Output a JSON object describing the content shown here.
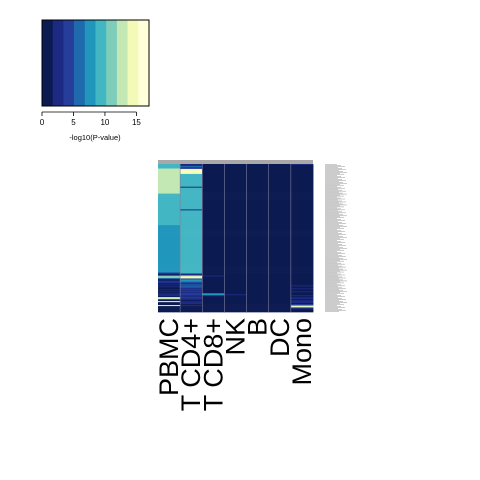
{
  "chart_data": {
    "type": "heatmap",
    "title": "",
    "columns": [
      "PBMC",
      "T CD4+",
      "T CD8+",
      "NK",
      "B",
      "DC",
      "Mono"
    ],
    "color_key": {
      "label": "-log10(P-value)",
      "range": [
        0,
        17
      ],
      "ticks": [
        0,
        5,
        10,
        15
      ],
      "palette": [
        "#0c1a52",
        "#1c2a83",
        "#243e99",
        "#1e6aad",
        "#2196bc",
        "#43b6c3",
        "#7ecdbb",
        "#c4e8b4",
        "#f3fab8",
        "#ffffd9"
      ]
    },
    "row_count": 150,
    "row_labels_legible": false,
    "rows": [
      [
        10,
        3,
        0,
        1,
        0,
        1,
        2
      ],
      [
        9,
        3,
        0,
        0,
        0,
        0,
        1
      ],
      [
        9,
        6,
        0,
        1,
        0,
        0,
        0
      ],
      [
        10,
        5,
        1,
        1,
        0,
        0,
        1
      ],
      [
        11,
        4,
        0,
        0,
        0,
        0,
        0
      ],
      [
        13,
        15,
        0,
        0,
        0,
        0,
        0
      ],
      [
        13,
        15,
        0,
        1,
        0,
        0,
        0
      ],
      [
        13,
        16,
        1,
        1,
        0,
        0,
        0
      ],
      [
        13,
        15,
        0,
        0,
        0,
        0,
        0
      ],
      [
        13,
        16,
        0,
        1,
        0,
        0,
        0
      ],
      [
        12,
        9,
        1,
        0,
        0,
        0,
        0
      ],
      [
        12,
        10,
        0,
        0,
        0,
        1,
        0
      ],
      [
        12,
        9,
        0,
        1,
        0,
        0,
        0
      ],
      [
        12,
        10,
        0,
        0,
        0,
        0,
        0
      ],
      [
        12,
        9,
        1,
        0,
        0,
        0,
        0
      ],
      [
        12,
        10,
        0,
        1,
        0,
        0,
        0
      ],
      [
        12,
        9,
        0,
        0,
        0,
        0,
        0
      ],
      [
        12,
        10,
        0,
        0,
        0,
        1,
        0
      ],
      [
        12,
        9,
        1,
        1,
        0,
        0,
        0
      ],
      [
        12,
        10,
        0,
        0,
        0,
        0,
        0
      ],
      [
        12,
        9,
        0,
        1,
        0,
        0,
        0
      ],
      [
        12,
        10,
        0,
        0,
        0,
        0,
        0
      ],
      [
        12,
        9,
        1,
        0,
        0,
        0,
        0
      ],
      [
        12,
        3,
        0,
        1,
        0,
        0,
        0
      ],
      [
        12,
        9,
        0,
        0,
        0,
        0,
        0
      ],
      [
        12,
        10,
        1,
        1,
        0,
        0,
        0
      ],
      [
        12,
        9,
        0,
        0,
        0,
        0,
        0
      ],
      [
        12,
        10,
        0,
        1,
        0,
        0,
        0
      ],
      [
        12,
        9,
        0,
        0,
        0,
        0,
        0
      ],
      [
        12,
        10,
        0,
        0,
        0,
        0,
        0
      ],
      [
        10,
        9,
        0,
        1,
        0,
        0,
        0
      ],
      [
        10,
        10,
        0,
        0,
        0,
        0,
        0
      ],
      [
        10,
        9,
        1,
        0,
        0,
        0,
        0
      ],
      [
        10,
        10,
        0,
        1,
        0,
        0,
        0
      ],
      [
        10,
        9,
        0,
        0,
        0,
        0,
        0
      ],
      [
        10,
        10,
        1,
        1,
        0,
        0,
        0
      ],
      [
        10,
        9,
        0,
        0,
        0,
        0,
        0
      ],
      [
        10,
        10,
        0,
        1,
        0,
        0,
        0
      ],
      [
        10,
        9,
        0,
        0,
        0,
        0,
        0
      ],
      [
        10,
        10,
        0,
        1,
        0,
        0,
        0
      ],
      [
        10,
        9,
        0,
        0,
        0,
        0,
        0
      ],
      [
        10,
        10,
        1,
        1,
        0,
        0,
        0
      ],
      [
        10,
        9,
        0,
        0,
        0,
        0,
        0
      ],
      [
        10,
        10,
        0,
        1,
        0,
        0,
        0
      ],
      [
        10,
        9,
        0,
        0,
        0,
        0,
        0
      ],
      [
        10,
        10,
        0,
        0,
        0,
        0,
        0
      ],
      [
        10,
        3,
        1,
        1,
        0,
        0,
        0
      ],
      [
        10,
        9,
        0,
        0,
        0,
        0,
        0
      ],
      [
        10,
        10,
        0,
        1,
        0,
        0,
        0
      ],
      [
        10,
        9,
        0,
        0,
        0,
        0,
        0
      ],
      [
        10,
        10,
        1,
        0,
        0,
        0,
        0
      ],
      [
        10,
        9,
        0,
        1,
        0,
        0,
        0
      ],
      [
        10,
        10,
        0,
        0,
        0,
        0,
        0
      ],
      [
        10,
        9,
        0,
        1,
        0,
        0,
        0
      ],
      [
        10,
        10,
        1,
        0,
        0,
        0,
        0
      ],
      [
        10,
        9,
        0,
        0,
        0,
        0,
        0
      ],
      [
        10,
        10,
        0,
        1,
        0,
        0,
        0
      ],
      [
        10,
        9,
        0,
        0,
        0,
        0,
        0
      ],
      [
        10,
        10,
        1,
        1,
        0,
        0,
        0
      ],
      [
        10,
        9,
        0,
        0,
        0,
        0,
        0
      ],
      [
        10,
        10,
        0,
        1,
        0,
        0,
        0
      ],
      [
        10,
        9,
        0,
        0,
        0,
        0,
        0
      ],
      [
        7,
        9,
        0,
        0,
        0,
        0,
        0
      ],
      [
        7,
        10,
        0,
        1,
        0,
        0,
        0
      ],
      [
        7,
        9,
        1,
        0,
        0,
        0,
        0
      ],
      [
        7,
        10,
        0,
        1,
        0,
        0,
        0
      ],
      [
        7,
        9,
        0,
        0,
        0,
        0,
        0
      ],
      [
        7,
        10,
        0,
        1,
        0,
        0,
        0
      ],
      [
        7,
        9,
        0,
        0,
        0,
        0,
        0
      ],
      [
        7,
        10,
        1,
        1,
        0,
        0,
        0
      ],
      [
        7,
        9,
        0,
        0,
        0,
        0,
        0
      ],
      [
        7,
        10,
        0,
        1,
        0,
        0,
        0
      ],
      [
        7,
        9,
        0,
        0,
        0,
        0,
        0
      ],
      [
        7,
        10,
        0,
        0,
        0,
        0,
        0
      ],
      [
        7,
        9,
        1,
        1,
        0,
        0,
        0
      ],
      [
        7,
        10,
        0,
        0,
        0,
        0,
        0
      ],
      [
        7,
        9,
        0,
        1,
        0,
        0,
        0
      ],
      [
        7,
        10,
        0,
        0,
        0,
        0,
        0
      ],
      [
        7,
        9,
        0,
        1,
        0,
        0,
        0
      ],
      [
        7,
        10,
        1,
        0,
        0,
        0,
        0
      ],
      [
        7,
        9,
        0,
        0,
        0,
        0,
        0
      ],
      [
        7,
        10,
        0,
        1,
        0,
        0,
        0
      ],
      [
        7,
        9,
        0,
        0,
        0,
        0,
        0
      ],
      [
        7,
        10,
        0,
        1,
        0,
        0,
        0
      ],
      [
        7,
        9,
        1,
        0,
        0,
        0,
        0
      ],
      [
        7,
        10,
        0,
        0,
        0,
        0,
        0
      ],
      [
        7,
        9,
        0,
        1,
        0,
        0,
        0
      ],
      [
        7,
        10,
        0,
        0,
        0,
        0,
        0
      ],
      [
        7,
        9,
        0,
        1,
        0,
        0,
        0
      ],
      [
        7,
        10,
        1,
        0,
        0,
        0,
        0
      ],
      [
        7,
        9,
        0,
        0,
        0,
        0,
        0
      ],
      [
        7,
        10,
        0,
        1,
        0,
        0,
        0
      ],
      [
        7,
        9,
        0,
        0,
        0,
        0,
        0
      ],
      [
        7,
        10,
        0,
        1,
        0,
        0,
        0
      ],
      [
        7,
        9,
        1,
        0,
        0,
        0,
        0
      ],
      [
        7,
        10,
        0,
        0,
        0,
        0,
        0
      ],
      [
        7,
        9,
        0,
        1,
        0,
        0,
        0
      ],
      [
        7,
        10,
        0,
        0,
        0,
        0,
        0
      ],
      [
        7,
        9,
        0,
        1,
        0,
        0,
        0
      ],
      [
        7,
        10,
        1,
        0,
        0,
        0,
        0
      ],
      [
        7,
        9,
        0,
        0,
        0,
        0,
        0
      ],
      [
        7,
        10,
        0,
        1,
        0,
        0,
        0
      ],
      [
        7,
        9,
        0,
        0,
        0,
        0,
        0
      ],
      [
        7,
        10,
        0,
        1,
        0,
        0,
        0
      ],
      [
        7,
        9,
        1,
        0,
        0,
        0,
        0
      ],
      [
        7,
        10,
        0,
        0,
        0,
        0,
        0
      ],
      [
        7,
        9,
        0,
        1,
        0,
        0,
        0
      ],
      [
        7,
        10,
        0,
        0,
        0,
        0,
        0
      ],
      [
        7,
        9,
        0,
        1,
        0,
        0,
        0
      ],
      [
        7,
        10,
        1,
        0,
        0,
        0,
        0
      ],
      [
        4,
        9,
        0,
        0,
        0,
        0,
        0
      ],
      [
        2,
        3,
        0,
        1,
        0,
        0,
        0
      ],
      [
        1,
        2,
        0,
        0,
        0,
        0,
        0
      ],
      [
        10,
        13,
        2,
        1,
        0,
        0,
        0
      ],
      [
        13,
        15,
        1,
        0,
        0,
        0,
        0
      ],
      [
        10,
        14,
        0,
        0,
        0,
        0,
        0
      ],
      [
        2,
        4,
        1,
        1,
        0,
        0,
        0
      ],
      [
        1,
        7,
        0,
        0,
        0,
        0,
        0
      ],
      [
        3,
        7,
        1,
        0,
        0,
        0,
        0
      ],
      [
        4,
        6,
        0,
        1,
        0,
        0,
        0
      ],
      [
        2,
        4,
        1,
        0,
        0,
        0,
        0
      ],
      [
        1,
        3,
        0,
        0,
        0,
        0,
        1
      ],
      [
        2,
        6,
        1,
        1,
        0,
        0,
        0
      ],
      [
        1,
        4,
        0,
        0,
        0,
        0,
        2
      ],
      [
        2,
        6,
        1,
        1,
        0,
        0,
        0
      ],
      [
        1,
        4,
        0,
        0,
        0,
        0,
        1
      ],
      [
        1,
        3,
        0,
        1,
        0,
        0,
        2
      ],
      [
        2,
        4,
        1,
        0,
        0,
        0,
        0
      ],
      [
        1,
        3,
        1,
        1,
        0,
        0,
        1
      ],
      [
        2,
        4,
        0,
        0,
        0,
        0,
        2
      ],
      [
        1,
        2,
        0,
        0,
        0,
        0,
        1
      ],
      [
        2,
        4,
        8,
        1,
        0,
        0,
        0
      ],
      [
        2,
        4,
        7,
        2,
        0,
        0,
        0
      ],
      [
        2,
        3,
        3,
        0,
        1,
        0,
        3
      ],
      [
        1,
        2,
        1,
        1,
        0,
        0,
        1
      ],
      [
        16,
        4,
        1,
        1,
        0,
        0,
        3
      ],
      [
        12,
        3,
        1,
        1,
        0,
        0,
        2
      ],
      [
        2,
        2,
        1,
        0,
        0,
        1,
        1
      ],
      [
        1,
        1,
        0,
        1,
        0,
        0,
        2
      ],
      [
        16,
        3,
        1,
        1,
        0,
        0,
        3
      ],
      [
        1,
        2,
        0,
        0,
        0,
        0,
        2
      ],
      [
        1,
        3,
        0,
        1,
        0,
        0,
        1
      ],
      [
        1,
        1,
        0,
        0,
        0,
        1,
        4
      ],
      [
        14,
        3,
        1,
        1,
        1,
        0,
        10
      ],
      [
        1,
        1,
        0,
        0,
        0,
        1,
        14
      ],
      [
        1,
        1,
        0,
        1,
        0,
        0,
        8
      ],
      [
        0,
        1,
        0,
        0,
        0,
        1,
        2
      ],
      [
        1,
        1,
        0,
        0,
        0,
        0,
        1
      ],
      [
        0,
        1,
        0,
        0,
        0,
        1,
        1
      ],
      [
        1,
        1,
        0,
        0,
        0,
        0,
        0
      ]
    ]
  }
}
